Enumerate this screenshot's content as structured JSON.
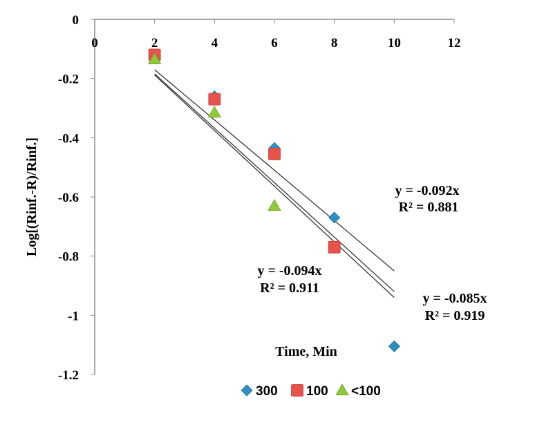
{
  "chart_data": {
    "type": "scatter",
    "title": "",
    "xlabel": "Time, Min",
    "ylabel": "Log[(Rinf.-R)/Rinf.]",
    "xlim": [
      0,
      12
    ],
    "ylim": [
      -1.2,
      0
    ],
    "x_ticks": [
      "0",
      "2",
      "4",
      "6",
      "8",
      "10",
      "12"
    ],
    "y_ticks": [
      "0",
      "-0.2",
      "-0.4",
      "-0.6",
      "-0.8",
      "-1",
      "-1.2"
    ],
    "grid": false,
    "legend_position": "bottom",
    "series": [
      {
        "name": "300",
        "marker": "diamond",
        "color": "#2E8FC0",
        "points": [
          [
            2,
            -0.12
          ],
          [
            4,
            -0.26
          ],
          [
            6,
            -0.435
          ],
          [
            8,
            -0.67
          ],
          [
            10,
            -1.105
          ]
        ],
        "trendline": {
          "slope": -0.092,
          "x_range": [
            2,
            10
          ]
        }
      },
      {
        "name": "100",
        "marker": "square",
        "color": "#E8524D",
        "points": [
          [
            2,
            -0.12
          ],
          [
            4,
            -0.27
          ],
          [
            6,
            -0.455
          ],
          [
            8,
            -0.77
          ]
        ],
        "trendline": {
          "slope": -0.094,
          "x_range": [
            2,
            10
          ]
        }
      },
      {
        "name": "<100",
        "marker": "triangle",
        "color": "#8FC93A",
        "points": [
          [
            2,
            -0.135
          ],
          [
            4,
            -0.315
          ],
          [
            6,
            -0.63
          ]
        ],
        "trendline": {
          "slope": -0.085,
          "x_range": [
            2,
            10
          ]
        }
      }
    ],
    "annotations": [
      {
        "equation": "y = -0.092x",
        "r2": "R² = 0.881"
      },
      {
        "equation": "y = -0.094x",
        "r2": "R² = 0.911"
      },
      {
        "equation": "y = -0.085x",
        "r2": "R² = 0.919"
      }
    ]
  }
}
